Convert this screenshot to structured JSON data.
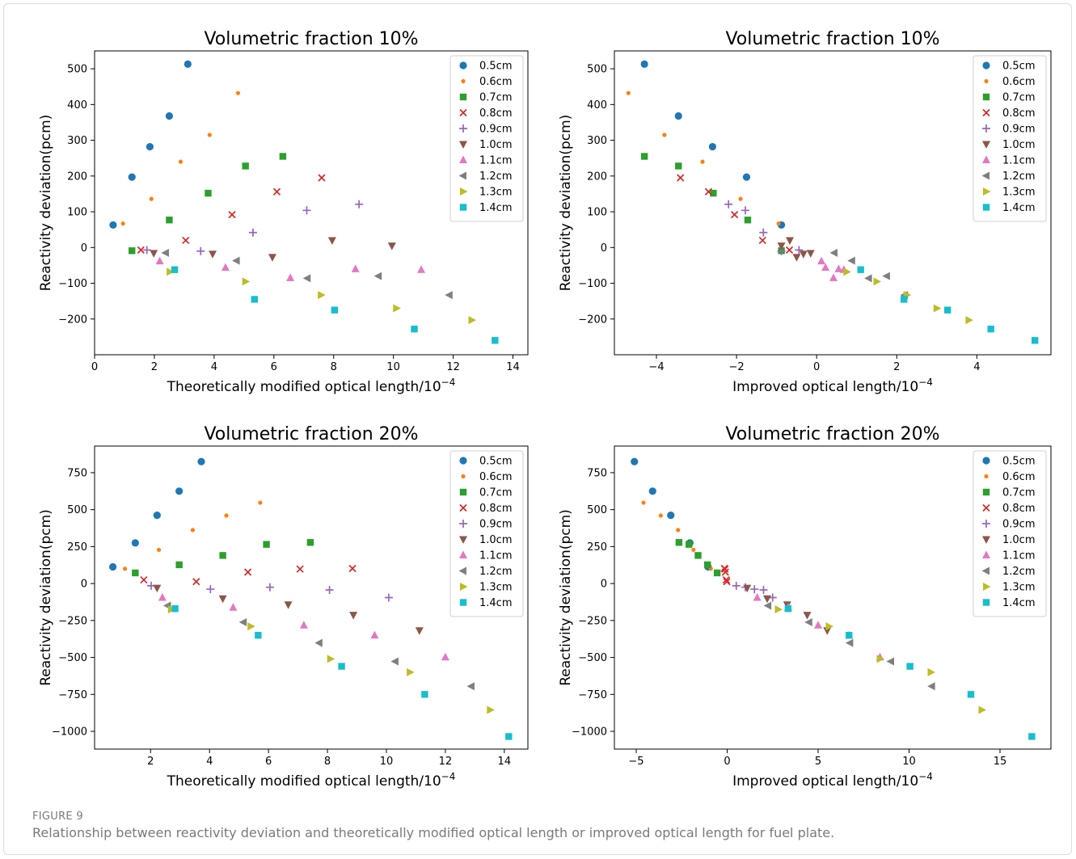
{
  "figure": {
    "label": "FIGURE 9",
    "caption": "Relationship between reactivity deviation and theoretically modified optical length or improved optical length for fuel plate."
  },
  "legend_labels": [
    "0.5cm",
    "0.6cm",
    "0.7cm",
    "0.8cm",
    "0.9cm",
    "1.0cm",
    "1.1cm",
    "1.2cm",
    "1.3cm",
    "1.4cm"
  ],
  "series_styles": [
    {
      "color": "#1f77b4",
      "marker": "circle"
    },
    {
      "color": "#ff7f0e",
      "marker": "point"
    },
    {
      "color": "#2ca02c",
      "marker": "square"
    },
    {
      "color": "#d62728",
      "marker": "x"
    },
    {
      "color": "#9467bd",
      "marker": "plus"
    },
    {
      "color": "#8c564b",
      "marker": "triangle-down"
    },
    {
      "color": "#e377c2",
      "marker": "triangle-up"
    },
    {
      "color": "#7f7f7f",
      "marker": "triangle-left"
    },
    {
      "color": "#bcbd22",
      "marker": "triangle-right"
    },
    {
      "color": "#17becf",
      "marker": "square"
    }
  ],
  "chart_data": [
    {
      "type": "scatter",
      "title": "Volumetric fraction 10%",
      "xlabel": "Theoretically modified optical length/10",
      "xlabel_exp": "−4",
      "ylabel": "Reactivity deviation(pcm)",
      "xlim": [
        0,
        14.5
      ],
      "ylim": [
        -300,
        550
      ],
      "xticks": [
        0,
        2,
        4,
        6,
        8,
        10,
        12,
        14
      ],
      "yticks": [
        -200,
        -100,
        0,
        100,
        200,
        300,
        400,
        500
      ],
      "legend": "top-right",
      "grid": false,
      "series": [
        {
          "name": "0.5cm",
          "x": [
            0.62,
            1.25,
            1.85,
            2.5,
            3.12
          ],
          "y": [
            63,
            197,
            282,
            368,
            513
          ]
        },
        {
          "name": "0.6cm",
          "x": [
            0.95,
            1.9,
            2.88,
            3.85,
            4.8
          ],
          "y": [
            67,
            136,
            240,
            315,
            432
          ]
        },
        {
          "name": "0.7cm",
          "x": [
            1.25,
            2.5,
            3.8,
            5.05,
            6.3
          ],
          "y": [
            -9,
            77,
            152,
            228,
            255
          ]
        },
        {
          "name": "0.8cm",
          "x": [
            1.55,
            3.05,
            4.6,
            6.1,
            7.6
          ],
          "y": [
            -7,
            20,
            92,
            156,
            195
          ]
        },
        {
          "name": "0.9cm",
          "x": [
            1.75,
            3.55,
            5.3,
            7.1,
            8.85
          ],
          "y": [
            -7,
            -10,
            42,
            104,
            121
          ]
        },
        {
          "name": "1.0cm",
          "x": [
            1.98,
            3.95,
            5.95,
            7.95,
            9.95
          ],
          "y": [
            -16,
            -18,
            -27,
            20,
            5
          ]
        },
        {
          "name": "1.1cm",
          "x": [
            2.18,
            4.38,
            6.55,
            8.73,
            10.93
          ],
          "y": [
            -38,
            -56,
            -85,
            -60,
            -62
          ]
        },
        {
          "name": "1.2cm",
          "x": [
            2.38,
            4.75,
            7.12,
            9.5,
            11.87
          ],
          "y": [
            -15,
            -37,
            -86,
            -80,
            -133
          ]
        },
        {
          "name": "1.3cm",
          "x": [
            2.52,
            5.05,
            7.58,
            10.1,
            12.62
          ],
          "y": [
            -68,
            -95,
            -133,
            -170,
            -203
          ]
        },
        {
          "name": "1.4cm",
          "x": [
            2.68,
            5.35,
            8.03,
            10.7,
            13.4
          ],
          "y": [
            -62,
            -145,
            -175,
            -228,
            -260
          ]
        }
      ]
    },
    {
      "type": "scatter",
      "title": "Volumetric fraction 10%",
      "xlabel": "Improved optical length/10",
      "xlabel_exp": "−4",
      "ylabel": "Reactivity deviation(pcm)",
      "xlim": [
        -5.05,
        5.85
      ],
      "ylim": [
        -300,
        550
      ],
      "xticks": [
        -4,
        -2,
        0,
        2,
        4
      ],
      "yticks": [
        -200,
        -100,
        0,
        100,
        200,
        300,
        400,
        500
      ],
      "legend": "top-right",
      "grid": false,
      "series": [
        {
          "name": "0.5cm",
          "x": [
            -4.3,
            -3.45,
            -2.6,
            -1.75,
            -0.88
          ],
          "y": [
            513,
            368,
            282,
            197,
            63
          ]
        },
        {
          "name": "0.6cm",
          "x": [
            -4.7,
            -3.8,
            -2.85,
            -1.9,
            -0.95
          ],
          "y": [
            432,
            315,
            240,
            136,
            67
          ]
        },
        {
          "name": "0.7cm",
          "x": [
            -4.3,
            -3.45,
            -2.58,
            -1.72,
            -0.88
          ],
          "y": [
            255,
            228,
            152,
            77,
            -9
          ]
        },
        {
          "name": "0.8cm",
          "x": [
            -3.4,
            -2.7,
            -2.05,
            -1.35,
            -0.68
          ],
          "y": [
            195,
            156,
            92,
            20,
            -7
          ]
        },
        {
          "name": "0.9cm",
          "x": [
            -2.2,
            -1.78,
            -1.33,
            -0.88,
            -0.44
          ],
          "y": [
            121,
            104,
            42,
            -10,
            -7
          ]
        },
        {
          "name": "1.0cm",
          "x": [
            -0.88,
            -0.67,
            -0.5,
            -0.33,
            -0.15
          ],
          "y": [
            5,
            20,
            -27,
            -18,
            -16
          ]
        },
        {
          "name": "1.1cm",
          "x": [
            0.12,
            0.22,
            0.42,
            0.55,
            0.68
          ],
          "y": [
            -38,
            -56,
            -85,
            -60,
            -62
          ]
        },
        {
          "name": "1.2cm",
          "x": [
            0.44,
            0.88,
            1.3,
            1.75,
            2.2
          ],
          "y": [
            -15,
            -37,
            -86,
            -80,
            -133
          ]
        },
        {
          "name": "1.3cm",
          "x": [
            0.75,
            1.5,
            2.25,
            3.0,
            3.8
          ],
          "y": [
            -68,
            -95,
            -133,
            -170,
            -203
          ]
        },
        {
          "name": "1.4cm",
          "x": [
            1.1,
            2.18,
            3.27,
            4.35,
            5.45
          ],
          "y": [
            -62,
            -145,
            -175,
            -228,
            -260
          ]
        }
      ]
    },
    {
      "type": "scatter",
      "title": "Volumetric fraction 20%",
      "xlabel": "Theoretically modified optical length/10",
      "xlabel_exp": "−4",
      "ylabel": "Reactivity deviation(pcm)",
      "xlim": [
        0.1,
        14.8
      ],
      "ylim": [
        -1120,
        930
      ],
      "xticks": [
        2,
        4,
        6,
        8,
        10,
        12,
        14
      ],
      "yticks": [
        -1000,
        -750,
        -500,
        -250,
        0,
        250,
        500,
        750
      ],
      "legend": "top-right",
      "grid": false,
      "series": [
        {
          "name": "0.5cm",
          "x": [
            0.72,
            1.48,
            2.22,
            2.97,
            3.72
          ],
          "y": [
            113,
            275,
            462,
            625,
            825
          ]
        },
        {
          "name": "0.6cm",
          "x": [
            1.13,
            2.28,
            3.43,
            4.57,
            5.72
          ],
          "y": [
            100,
            228,
            362,
            460,
            547
          ]
        },
        {
          "name": "0.7cm",
          "x": [
            1.48,
            2.97,
            4.45,
            5.93,
            7.42
          ],
          "y": [
            72,
            127,
            190,
            265,
            278
          ]
        },
        {
          "name": "0.8cm",
          "x": [
            1.77,
            3.55,
            5.3,
            7.07,
            8.85
          ],
          "y": [
            25,
            13,
            77,
            98,
            102
          ]
        },
        {
          "name": "0.9cm",
          "x": [
            2.02,
            4.03,
            6.05,
            8.07,
            10.08
          ],
          "y": [
            -15,
            -38,
            -25,
            -43,
            -95
          ]
        },
        {
          "name": "1.0cm",
          "x": [
            2.22,
            4.45,
            6.67,
            8.88,
            11.12
          ],
          "y": [
            -30,
            -102,
            -143,
            -213,
            -318
          ]
        },
        {
          "name": "1.1cm",
          "x": [
            2.4,
            4.8,
            7.2,
            9.6,
            12.0
          ],
          "y": [
            -95,
            -162,
            -282,
            -350,
            -498
          ]
        },
        {
          "name": "1.2cm",
          "x": [
            2.58,
            5.15,
            7.72,
            10.3,
            12.88
          ],
          "y": [
            -150,
            -262,
            -402,
            -527,
            -695
          ]
        },
        {
          "name": "1.3cm",
          "x": [
            2.7,
            5.4,
            8.1,
            10.8,
            13.52
          ],
          "y": [
            -175,
            -290,
            -510,
            -600,
            -855
          ]
        },
        {
          "name": "1.4cm",
          "x": [
            2.83,
            5.65,
            8.48,
            11.3,
            14.15
          ],
          "y": [
            -170,
            -350,
            -560,
            -750,
            -1035
          ]
        }
      ]
    },
    {
      "type": "scatter",
      "title": "Volumetric fraction 20%",
      "xlabel": "Improved optical length/10",
      "xlabel_exp": "−4",
      "ylabel": "Reactivity deviation(pcm)",
      "xlim": [
        -6.2,
        17.8
      ],
      "ylim": [
        -1120,
        930
      ],
      "xticks": [
        -5,
        0,
        5,
        10,
        15
      ],
      "yticks": [
        -1000,
        -750,
        -500,
        -250,
        0,
        250,
        500,
        750
      ],
      "legend": "top-right",
      "grid": false,
      "series": [
        {
          "name": "0.5cm",
          "x": [
            -5.1,
            -4.1,
            -3.1,
            -2.05,
            -1.05
          ],
          "y": [
            825,
            625,
            462,
            275,
            113
          ]
        },
        {
          "name": "0.6cm",
          "x": [
            -4.6,
            -3.65,
            -2.7,
            -1.85,
            -0.9
          ],
          "y": [
            547,
            460,
            362,
            228,
            100
          ]
        },
        {
          "name": "0.7cm",
          "x": [
            -2.65,
            -2.1,
            -1.6,
            -1.08,
            -0.55
          ],
          "y": [
            278,
            265,
            190,
            127,
            72
          ]
        },
        {
          "name": "0.8cm",
          "x": [
            -0.15,
            -0.12,
            -0.1,
            -0.05,
            -0.02
          ],
          "y": [
            102,
            98,
            77,
            25,
            13
          ]
        },
        {
          "name": "0.9cm",
          "x": [
            0.5,
            1.0,
            1.5,
            2.0,
            2.5
          ],
          "y": [
            -15,
            -25,
            -38,
            -43,
            -95
          ]
        },
        {
          "name": "1.0cm",
          "x": [
            1.1,
            2.2,
            3.3,
            4.4,
            5.5
          ],
          "y": [
            -30,
            -102,
            -143,
            -213,
            -318
          ]
        },
        {
          "name": "1.1cm",
          "x": [
            1.65,
            3.35,
            5.0,
            6.7,
            8.4
          ],
          "y": [
            -95,
            -162,
            -282,
            -350,
            -498
          ]
        },
        {
          "name": "1.2cm",
          "x": [
            2.25,
            4.5,
            6.75,
            9.0,
            11.25
          ],
          "y": [
            -150,
            -262,
            -402,
            -527,
            -695
          ]
        },
        {
          "name": "1.3cm",
          "x": [
            2.8,
            5.6,
            8.4,
            11.2,
            14.0
          ],
          "y": [
            -175,
            -290,
            -510,
            -600,
            -855
          ]
        },
        {
          "name": "1.4cm",
          "x": [
            3.35,
            6.7,
            10.05,
            13.4,
            16.75
          ],
          "y": [
            -170,
            -350,
            -560,
            -750,
            -1035
          ]
        }
      ]
    }
  ]
}
